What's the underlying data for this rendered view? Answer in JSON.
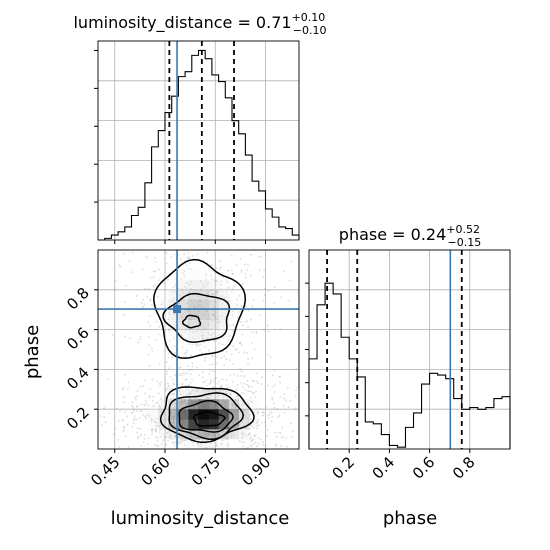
{
  "chart_data": [
    {
      "type": "histogram",
      "panel": "luminosity_distance-marginal",
      "title": {
        "param": "luminosity_distance",
        "median": "0.71",
        "plus": "+0.10",
        "minus": "−0.10"
      },
      "xlim": [
        0.4,
        1.0
      ],
      "grid": true,
      "bin_edges": [
        0.4,
        0.42,
        0.44,
        0.46,
        0.48,
        0.5,
        0.52,
        0.54,
        0.56,
        0.58,
        0.6,
        0.62,
        0.64,
        0.66,
        0.68,
        0.7,
        0.72,
        0.74,
        0.76,
        0.78,
        0.8,
        0.82,
        0.84,
        0.86,
        0.88,
        0.9,
        0.92,
        0.94,
        0.96,
        0.98,
        1.0
      ],
      "counts": [
        0,
        1,
        3,
        5,
        8,
        15,
        20,
        35,
        57,
        67,
        78,
        88,
        100,
        103,
        113,
        116,
        111,
        101,
        97,
        87,
        73,
        65,
        52,
        36,
        30,
        19,
        14,
        8,
        7,
        3
      ],
      "quantile_lines": [
        0.613,
        0.71,
        0.806
      ],
      "truth": 0.636
    },
    {
      "type": "heatmap",
      "panel": "phase-vs-luminosity_distance",
      "xlabel": "luminosity_distance",
      "ylabel": "phase",
      "xlim": [
        0.4,
        1.0
      ],
      "ylim": [
        0.0,
        1.0
      ],
      "x_ticks": [
        "0.45",
        "0.60",
        "0.75",
        "0.90"
      ],
      "x_tick_values": [
        0.45,
        0.6,
        0.75,
        0.9
      ],
      "y_ticks": [
        "0.2",
        "0.4",
        "0.6",
        "0.8"
      ],
      "y_tick_values": [
        0.2,
        0.4,
        0.6,
        0.8
      ],
      "grid": true,
      "density_modes": [
        {
          "x": 0.72,
          "y": 0.16,
          "sx": 0.085,
          "sy": 0.075,
          "w": 1.0
        },
        {
          "x": 0.7,
          "y": 0.7,
          "sx": 0.075,
          "sy": 0.12,
          "w": 0.45
        }
      ],
      "contours": [
        {
          "center": [
            0.73,
            0.15
          ],
          "rx": 0.045,
          "ry": 0.035
        },
        {
          "center": [
            0.72,
            0.16
          ],
          "rx": 0.08,
          "ry": 0.075
        },
        {
          "center": [
            0.72,
            0.17
          ],
          "rx": 0.11,
          "ry": 0.11
        },
        {
          "center": [
            0.72,
            0.18
          ],
          "rx": 0.135,
          "ry": 0.135
        },
        {
          "center": [
            0.68,
            0.64
          ],
          "rx": 0.025,
          "ry": 0.03
        },
        {
          "center": [
            0.7,
            0.66
          ],
          "rx": 0.095,
          "ry": 0.12
        },
        {
          "center": [
            0.7,
            0.7
          ],
          "rx": 0.13,
          "ry": 0.24
        }
      ],
      "truth": [
        0.636,
        0.703
      ]
    },
    {
      "type": "histogram",
      "panel": "phase-marginal",
      "title": {
        "param": "phase",
        "median": "0.24",
        "plus": "+0.52",
        "minus": "−0.15"
      },
      "xlabel": "phase",
      "xlim": [
        0.0,
        1.0
      ],
      "x_ticks": [
        "0.2",
        "0.4",
        "0.6",
        "0.8"
      ],
      "x_tick_values": [
        0.2,
        0.4,
        0.6,
        0.8
      ],
      "grid": true,
      "bin_edges": [
        0.0,
        0.04,
        0.08,
        0.12,
        0.16,
        0.2,
        0.24,
        0.28,
        0.32,
        0.36,
        0.4,
        0.44,
        0.48,
        0.52,
        0.56,
        0.6,
        0.64,
        0.68,
        0.72,
        0.76,
        0.8,
        0.84,
        0.88,
        0.92,
        0.96,
        1.0
      ],
      "counts": [
        50,
        80,
        92,
        86,
        62,
        50,
        40,
        15,
        14,
        8,
        2,
        1,
        12,
        20,
        36,
        42,
        41,
        39,
        28,
        22,
        23,
        22,
        23,
        28,
        29
      ],
      "quantile_lines": [
        0.09,
        0.24,
        0.76
      ],
      "truth": 0.703
    }
  ]
}
